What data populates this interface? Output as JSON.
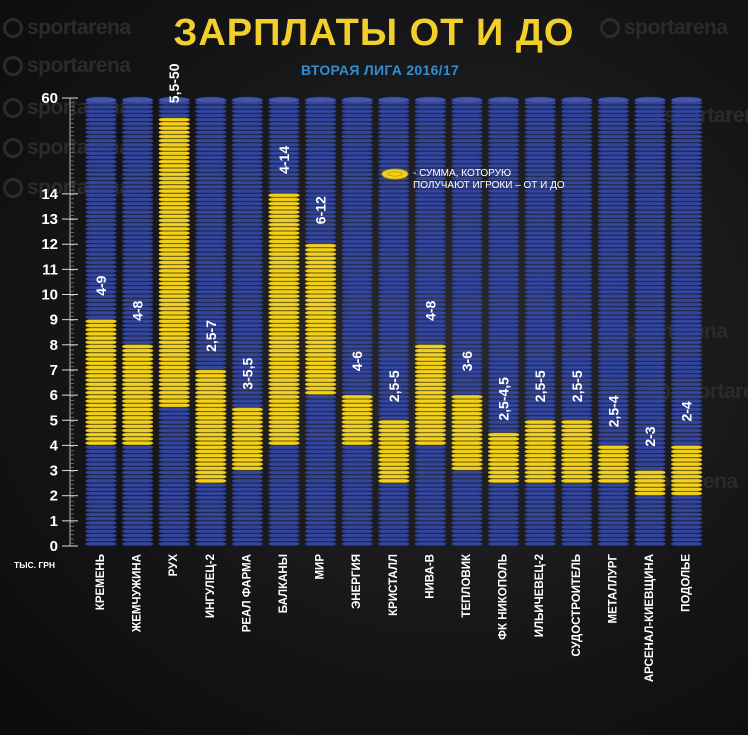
{
  "title": "ЗАРПЛАТЫ ОТ И ДО",
  "subtitle": "ВТОРАЯ ЛИГА 2016/17",
  "watermark": "sportarena",
  "unit_label": "ТЫС. ГРН",
  "legend_text": [
    "- СУММА, КОТОРУЮ",
    "ПОЛУЧАЮТ ИГРОКИ – ОТ И ДО"
  ],
  "colors": {
    "coin_blue": "#34469a",
    "coin_yellow": "#f2d21e",
    "accent_title": "#f3cf2c",
    "accent_subtitle": "#2f8fd2"
  },
  "chart_data": {
    "type": "bar",
    "title": "ЗАРПЛАТЫ ОТ И ДО",
    "subtitle": "ВТОРАЯ ЛИГА 2016/17",
    "ylabel": "ТЫС. ГРН",
    "y_ticks": [
      0,
      1,
      2,
      3,
      4,
      5,
      6,
      7,
      8,
      9,
      10,
      11,
      12,
      13,
      14,
      60
    ],
    "ylim": [
      0,
      60
    ],
    "y_scale": "broken axis (0–14 linear, jump to 60)",
    "categories": [
      "КРЕМЕНЬ",
      "ЖЕМЧУЖИНА",
      "РУХ",
      "ИНГУЛЕЦ-2",
      "РЕАЛ ФАРМА",
      "БАЛКАНЫ",
      "МИР",
      "ЭНЕРГИЯ",
      "КРИСТАЛЛ",
      "НИВА-В",
      "ТЕПЛОВИК",
      "ФК НИКОПОЛЬ",
      "ИЛЬИЧЕВЕЦ-2",
      "СУДОСТРОИТЕЛЬ",
      "МЕТАЛЛУРГ",
      "АРСЕНАЛ-КИЕВЩИНА",
      "ПОДОЛЬЕ"
    ],
    "range_labels": [
      "4-9",
      "4-8",
      "5,5-50",
      "2,5-7",
      "3-5,5",
      "4-14",
      "6-12",
      "4-6",
      "2,5-5",
      "4-8",
      "3-6",
      "2,5-4,5",
      "2,5-5",
      "2,5-5",
      "2,5-4",
      "2-3",
      "2-4"
    ],
    "from": [
      4,
      4,
      5.5,
      2.5,
      3,
      4,
      6,
      4,
      2.5,
      4,
      3,
      2.5,
      2.5,
      2.5,
      2.5,
      2,
      2
    ],
    "to": [
      9,
      8,
      50,
      7,
      5.5,
      14,
      12,
      6,
      5,
      8,
      6,
      4.5,
      5,
      5,
      4,
      3,
      4
    ],
    "grid": false,
    "legend": "top-center inside plot"
  }
}
